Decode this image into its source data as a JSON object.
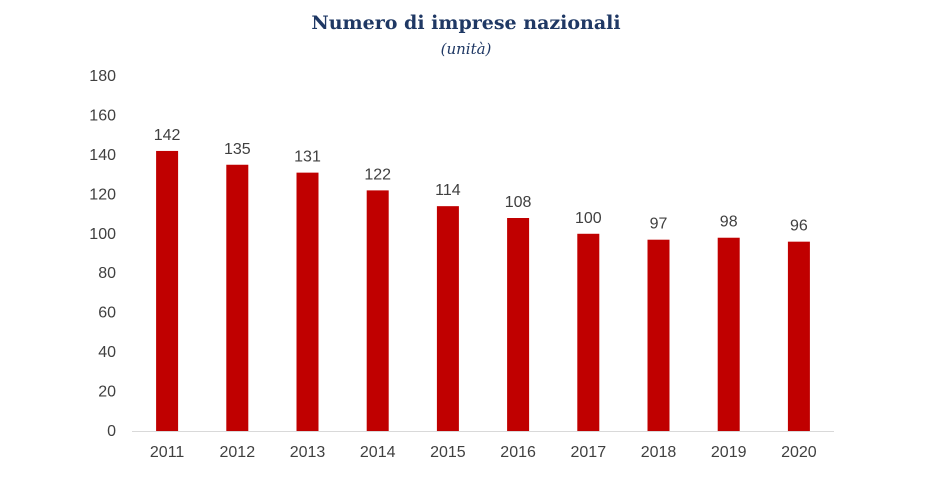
{
  "chart_data": {
    "type": "bar",
    "title": "Numero di imprese nazionali",
    "subtitle": "(unità)",
    "categories": [
      "2011",
      "2012",
      "2013",
      "2014",
      "2015",
      "2016",
      "2017",
      "2018",
      "2019",
      "2020"
    ],
    "values": [
      142,
      135,
      131,
      122,
      114,
      108,
      100,
      97,
      98,
      96
    ],
    "ylim": [
      0,
      180
    ],
    "yticks": [
      0,
      20,
      40,
      60,
      80,
      100,
      120,
      140,
      160,
      180
    ],
    "xlabel": "",
    "ylabel": "",
    "grid": false,
    "legend": "none",
    "bar_color": "#c00000",
    "axis_color": "#d9d9d9",
    "label_color": "#404040"
  }
}
